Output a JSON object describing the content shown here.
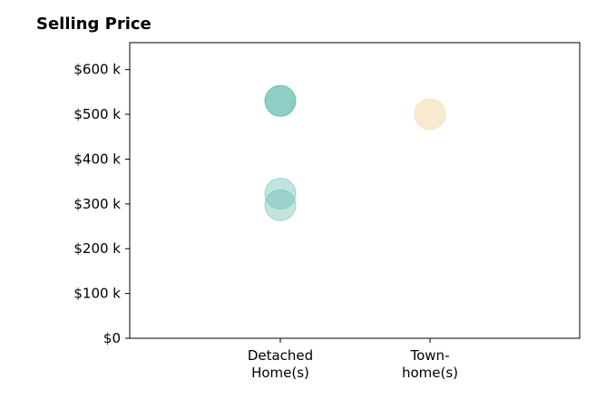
{
  "chart_data": {
    "type": "scatter",
    "title": "Selling Price",
    "xlabel": "",
    "ylabel": "",
    "categories": [
      "Detached\nHome(s)",
      "Town-\nhome(s)"
    ],
    "y_ticks": [
      {
        "value": 0,
        "label": "$0"
      },
      {
        "value": 100,
        "label": "$100 k"
      },
      {
        "value": 200,
        "label": "$200 k"
      },
      {
        "value": 300,
        "label": "$300 k"
      },
      {
        "value": 400,
        "label": "$400 k"
      },
      {
        "value": 500,
        "label": "$500 k"
      },
      {
        "value": 600,
        "label": "$600 k"
      }
    ],
    "ylim": [
      0,
      660
    ],
    "points": [
      {
        "category": "Detached\nHome(s)",
        "y": 530,
        "color": "#5fb8ad",
        "opacity": 0.7
      },
      {
        "category": "Detached\nHome(s)",
        "y": 323,
        "color": "#5fb8ad",
        "opacity": 0.38
      },
      {
        "category": "Detached\nHome(s)",
        "y": 297,
        "color": "#5fb8ad",
        "opacity": 0.38
      },
      {
        "category": "Town-\nhome(s)",
        "y": 500,
        "color": "#f5dfb5",
        "opacity": 0.65
      }
    ],
    "grid": false,
    "legend": "none"
  }
}
